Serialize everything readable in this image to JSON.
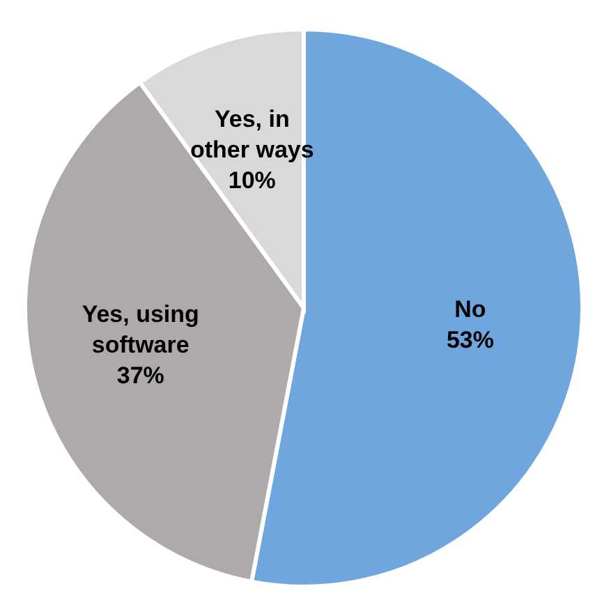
{
  "chart_data": {
    "type": "pie",
    "categories": [
      "No",
      "Yes, using software",
      "Yes, in other ways"
    ],
    "values": [
      53,
      37,
      10
    ],
    "colors": [
      "#6fa6de",
      "#aeaaaa",
      "#d9d9d9"
    ],
    "value_labels": [
      "53%",
      "37%",
      "10%"
    ]
  }
}
